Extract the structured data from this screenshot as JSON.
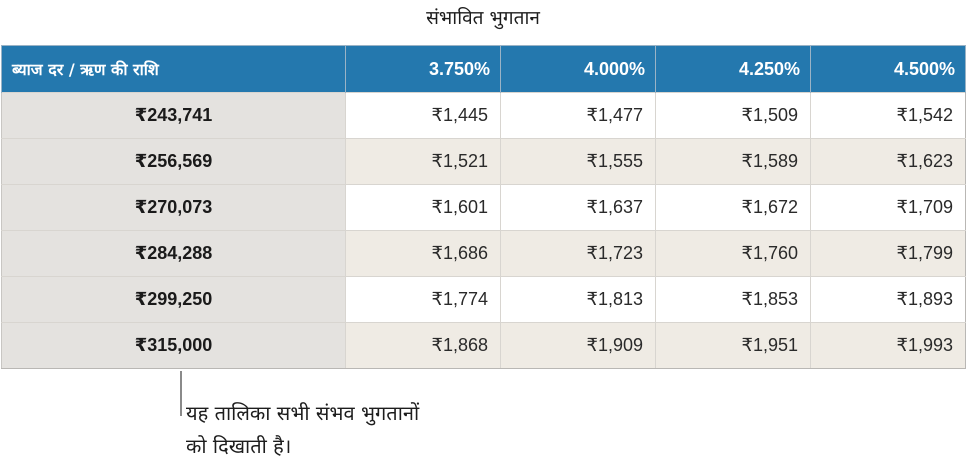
{
  "title": "संभावित भुगतान",
  "table": {
    "corner_header": "ब्याज दर / ऋण की राशि",
    "rate_headers": [
      "3.750%",
      "4.000%",
      "4.250%",
      "4.500%"
    ],
    "rows": [
      {
        "loan_amount": "₹243,741",
        "payments": [
          "₹1,445",
          "₹1,477",
          "₹1,509",
          "₹1,542"
        ]
      },
      {
        "loan_amount": "₹256,569",
        "payments": [
          "₹1,521",
          "₹1,555",
          "₹1,589",
          "₹1,623"
        ]
      },
      {
        "loan_amount": "₹270,073",
        "payments": [
          "₹1,601",
          "₹1,637",
          "₹1,672",
          "₹1,709"
        ]
      },
      {
        "loan_amount": "₹284,288",
        "payments": [
          "₹1,686",
          "₹1,723",
          "₹1,760",
          "₹1,799"
        ]
      },
      {
        "loan_amount": "₹299,250",
        "payments": [
          "₹1,774",
          "₹1,813",
          "₹1,853",
          "₹1,893"
        ]
      },
      {
        "loan_amount": "₹315,000",
        "payments": [
          "₹1,868",
          "₹1,909",
          "₹1,951",
          "₹1,993"
        ]
      }
    ]
  },
  "callout": {
    "line1": "यह तालिका सभी संभव भुगतानों",
    "line2": "को दिखाती है।"
  },
  "colors": {
    "header_bg": "#2478ae",
    "header_text": "#ffffff",
    "row_header_bg": "#e4e2df",
    "alt_row_bg": "#efebe4",
    "row_bg": "#ffffff"
  }
}
